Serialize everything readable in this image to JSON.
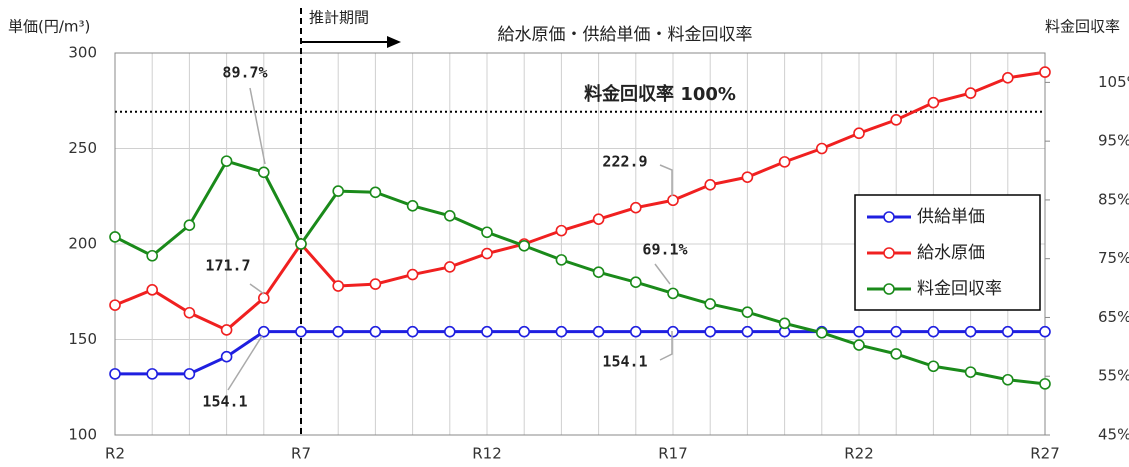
{
  "chart_data": {
    "type": "line",
    "title": "給水原価・供給単価・料金回収率",
    "y_label": "単価(円/m³)",
    "y2_label": "料金回収率",
    "categories": [
      "R2",
      null,
      null,
      null,
      null,
      "R7",
      null,
      null,
      null,
      null,
      "R12",
      null,
      null,
      null,
      null,
      "R17",
      null,
      null,
      null,
      null,
      "R22",
      null,
      null,
      null,
      null,
      "R27"
    ],
    "ylim": [
      100,
      300
    ],
    "yticks": [
      100,
      150,
      200,
      250,
      300
    ],
    "y2lim": [
      45,
      110
    ],
    "y2ticks": [
      {
        "value": 45,
        "label": "45%"
      },
      {
        "value": 55,
        "label": "55%"
      },
      {
        "value": 65,
        "label": "65%"
      },
      {
        "value": 75,
        "label": "75%"
      },
      {
        "value": 85,
        "label": "85%"
      },
      {
        "value": 95,
        "label": "95%"
      },
      {
        "value": 105,
        "label": "105%"
      }
    ],
    "grid": true,
    "legend": "right",
    "forecast": {
      "label": "推計期間",
      "start": "R7"
    },
    "reference_line": {
      "value": 100,
      "label": "料金回収率 100%",
      "axis": "y2"
    },
    "series": [
      {
        "name": "供給単価",
        "color": "#1f1fe0",
        "values": [
          132,
          132,
          132,
          141,
          154.1,
          154.1,
          154.1,
          154.1,
          154.1,
          154.1,
          154.1,
          154.1,
          154.1,
          154.1,
          154.1,
          154.1,
          154.1,
          154.1,
          154.1,
          154.1,
          154.1,
          154.1,
          154.1,
          154.1,
          154.1,
          154.1
        ],
        "value_labels": [
          null,
          null,
          null,
          null,
          "154.1",
          null,
          null,
          null,
          null,
          null,
          null,
          null,
          null,
          null,
          null,
          "154.1",
          null,
          null,
          null,
          null,
          null,
          null,
          null,
          null,
          null,
          null
        ]
      },
      {
        "name": "給水原価",
        "color": "#f02020",
        "values": [
          168,
          176,
          164,
          155,
          171.7,
          200,
          178,
          179,
          184,
          188,
          195,
          200,
          207,
          213,
          219,
          222.9,
          231,
          235,
          243,
          250,
          258,
          265,
          274,
          279,
          287,
          290
        ],
        "value_labels": [
          null,
          null,
          null,
          null,
          "171.7",
          null,
          null,
          null,
          null,
          null,
          null,
          null,
          null,
          null,
          null,
          "222.9",
          null,
          null,
          null,
          null,
          null,
          null,
          null,
          null,
          null,
          null
        ]
      },
      {
        "name": "料金回収率",
        "color": "#1a8a1a",
        "axis": "y2",
        "values": [
          78.7,
          75.5,
          80.7,
          91.6,
          89.7,
          77.5,
          86.5,
          86.3,
          84,
          82.3,
          79.5,
          77.2,
          74.8,
          72.7,
          71,
          69.1,
          67.3,
          65.9,
          64,
          62.4,
          60.3,
          58.8,
          56.7,
          55.7,
          54.4,
          53.7
        ],
        "value_labels": [
          null,
          null,
          null,
          null,
          "89.7%",
          null,
          null,
          null,
          null,
          null,
          null,
          null,
          null,
          null,
          null,
          "69.1%",
          null,
          null,
          null,
          null,
          null,
          null,
          null,
          null,
          null,
          null
        ]
      }
    ]
  }
}
